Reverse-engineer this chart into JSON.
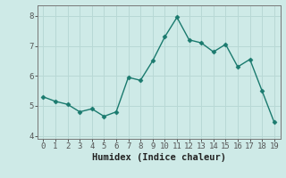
{
  "x": [
    0,
    1,
    2,
    3,
    4,
    5,
    6,
    7,
    8,
    9,
    10,
    11,
    12,
    13,
    14,
    15,
    16,
    17,
    18,
    19
  ],
  "y": [
    5.3,
    5.15,
    5.05,
    4.8,
    4.9,
    4.65,
    4.8,
    5.95,
    5.85,
    6.5,
    7.3,
    7.95,
    7.2,
    7.1,
    6.8,
    7.05,
    6.3,
    6.55,
    5.5,
    4.45
  ],
  "line_color": "#1a7a6e",
  "marker": "D",
  "marker_size": 2.5,
  "bg_color": "#ceeae7",
  "grid_color": "#b8d8d5",
  "xlabel": "Humidex (Indice chaleur)",
  "xlim": [
    -0.5,
    19.5
  ],
  "ylim": [
    3.9,
    8.35
  ],
  "yticks": [
    4,
    5,
    6,
    7,
    8
  ],
  "xticks": [
    0,
    1,
    2,
    3,
    4,
    5,
    6,
    7,
    8,
    9,
    10,
    11,
    12,
    13,
    14,
    15,
    16,
    17,
    18,
    19
  ],
  "tick_label_fontsize": 6.5,
  "xlabel_fontsize": 7.5,
  "line_width": 1.0,
  "spine_color": "#777777",
  "tick_color": "#555555"
}
